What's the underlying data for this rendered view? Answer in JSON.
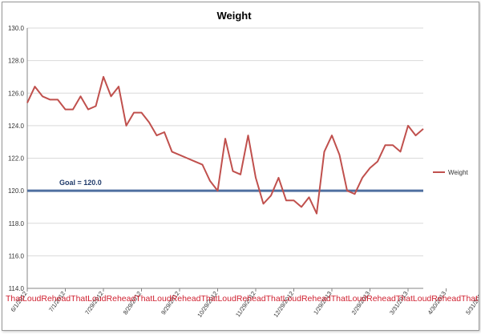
{
  "chart_data": {
    "type": "line",
    "title": "Weight",
    "ylim": [
      114.0,
      130.0
    ],
    "y_ticks": [
      "130.0",
      "128.0",
      "126.0",
      "124.0",
      "122.0",
      "120.0",
      "118.0",
      "116.0",
      "114.0"
    ],
    "x_tick_labels": [
      "6/1/2012",
      "7/1/2012",
      "7/29/2012",
      "8/29/2012",
      "9/29/2012",
      "10/29/2012",
      "11/29/2012",
      "12/29/2012",
      "1/29/2013",
      "2/29/2013",
      "3/31/2013",
      "4/30/2013",
      "5/31/2013"
    ],
    "x_tick_index": [
      0,
      5,
      10,
      15,
      20,
      25,
      30,
      35,
      40,
      45,
      50,
      55,
      60
    ],
    "horizontal_gridlines": true,
    "legend_position": "right",
    "series": [
      {
        "name": "Weight",
        "color": "#c0504d",
        "values": [
          125.4,
          126.4,
          125.8,
          125.6,
          125.6,
          125.0,
          125.0,
          125.8,
          125.0,
          125.2,
          127.0,
          125.8,
          126.4,
          124.0,
          124.8,
          124.8,
          124.2,
          123.4,
          123.6,
          122.4,
          122.2,
          122.0,
          121.8,
          121.6,
          120.6,
          120.0,
          123.2,
          121.2,
          121.0,
          123.4,
          120.8,
          119.2,
          119.7,
          120.8,
          119.4,
          119.4,
          119.0,
          119.6,
          118.6,
          122.4,
          123.4,
          122.2,
          120.0,
          119.8,
          120.8,
          121.4,
          121.8,
          122.8,
          122.8,
          122.4,
          124.0,
          123.4,
          123.8
        ]
      }
    ],
    "goal": {
      "value": 120.0,
      "label": "Goal = 120.0",
      "color": "#4f6fa0"
    }
  },
  "watermark": "ThatLoudReheadThatLoudReheadThatLoudReheadThatLoudReheadThatLoudReheadThatLoudReheadThatLoudReheadThatLoudReheadThatLoudReheadThatLoudReheadThatLoudReheadThatLoudReheadThatLoudReheadThatLoudRehead"
}
